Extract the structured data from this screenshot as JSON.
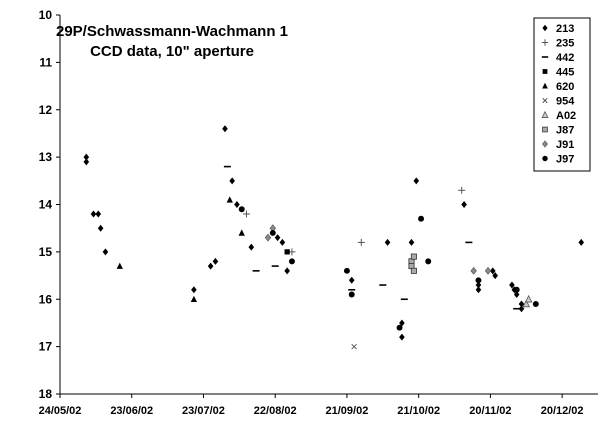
{
  "chart_data": {
    "type": "scatter",
    "title": "29P/Schwassmann-Wachmann 1",
    "subtitle": "CCD data, 10\" aperture",
    "xlabel": "",
    "ylabel": "",
    "xlim": [
      "2002-05-24",
      "2003-01-04"
    ],
    "ylim": [
      10,
      18
    ],
    "y_inverted": true,
    "x_ticks": [
      "24/05/02",
      "23/06/02",
      "23/07/02",
      "22/08/02",
      "21/09/02",
      "21/10/02",
      "20/11/02",
      "20/12/02"
    ],
    "y_ticks": [
      10,
      11,
      12,
      13,
      14,
      15,
      16,
      17,
      18
    ],
    "grid": false,
    "legend_position": "top-right",
    "series": [
      {
        "name": "213",
        "marker": "diamond",
        "color": "#000000",
        "points": [
          [
            "2002-06-04",
            13.0
          ],
          [
            "2002-06-04",
            13.1
          ],
          [
            "2002-06-07",
            14.2
          ],
          [
            "2002-06-09",
            14.2
          ],
          [
            "2002-06-10",
            14.5
          ],
          [
            "2002-06-12",
            15.0
          ],
          [
            "2002-07-26",
            15.3
          ],
          [
            "2002-07-28",
            15.2
          ],
          [
            "2002-07-19",
            15.8
          ],
          [
            "2002-08-01",
            12.4
          ],
          [
            "2002-08-04",
            13.5
          ],
          [
            "2002-08-06",
            14.0
          ],
          [
            "2002-08-12",
            14.9
          ],
          [
            "2002-08-23",
            14.7
          ],
          [
            "2002-08-25",
            14.8
          ],
          [
            "2002-08-27",
            15.4
          ],
          [
            "2002-09-23",
            15.6
          ],
          [
            "2002-10-08",
            14.8
          ],
          [
            "2002-10-14",
            16.5
          ],
          [
            "2002-10-14",
            16.8
          ],
          [
            "2002-10-18",
            14.8
          ],
          [
            "2002-10-20",
            13.5
          ],
          [
            "2002-11-09",
            14.0
          ],
          [
            "2002-11-15",
            15.7
          ],
          [
            "2002-11-15",
            15.8
          ],
          [
            "2002-11-21",
            15.4
          ],
          [
            "2002-11-22",
            15.5
          ],
          [
            "2002-11-29",
            15.7
          ],
          [
            "2002-11-30",
            15.8
          ],
          [
            "2002-12-01",
            15.9
          ],
          [
            "2002-12-03",
            16.1
          ],
          [
            "2002-12-03",
            16.2
          ],
          [
            "2002-12-28",
            14.8
          ]
        ]
      },
      {
        "name": "235",
        "marker": "plus",
        "color": "#555555",
        "points": [
          [
            "2002-08-10",
            14.2
          ],
          [
            "2002-08-29",
            15.0
          ],
          [
            "2002-09-27",
            14.8
          ],
          [
            "2002-11-08",
            13.7
          ]
        ]
      },
      {
        "name": "442",
        "marker": "dash",
        "color": "#000000",
        "points": [
          [
            "2002-08-02",
            13.2
          ],
          [
            "2002-08-14",
            15.4
          ],
          [
            "2002-08-22",
            15.3
          ],
          [
            "2002-09-23",
            15.8
          ],
          [
            "2002-10-06",
            15.7
          ],
          [
            "2002-10-15",
            16.0
          ],
          [
            "2002-11-11",
            14.8
          ],
          [
            "2002-12-01",
            16.2
          ]
        ]
      },
      {
        "name": "445",
        "marker": "square",
        "color": "#000000",
        "points": [
          [
            "2002-08-27",
            15.0
          ]
        ]
      },
      {
        "name": "620",
        "marker": "triangle",
        "color": "#000000",
        "points": [
          [
            "2002-06-18",
            15.3
          ],
          [
            "2002-07-19",
            16.0
          ],
          [
            "2002-08-03",
            13.9
          ],
          [
            "2002-08-08",
            14.6
          ]
        ]
      },
      {
        "name": "954",
        "marker": "x",
        "color": "#555555",
        "points": [
          [
            "2002-09-24",
            17.0
          ]
        ]
      },
      {
        "name": "A02",
        "marker": "triangle-open",
        "color": "#777777",
        "points": [
          [
            "2002-12-05",
            16.1
          ],
          [
            "2002-12-06",
            16.0
          ]
        ]
      },
      {
        "name": "J87",
        "marker": "square-grey",
        "color": "#777777",
        "points": [
          [
            "2002-10-18",
            15.2
          ],
          [
            "2002-10-18",
            15.3
          ],
          [
            "2002-10-19",
            15.4
          ],
          [
            "2002-10-19",
            15.1
          ]
        ]
      },
      {
        "name": "J91",
        "marker": "diamond-grey",
        "color": "#888888",
        "points": [
          [
            "2002-08-19",
            14.7
          ],
          [
            "2002-08-21",
            14.5
          ],
          [
            "2002-11-13",
            15.4
          ],
          [
            "2002-11-19",
            15.4
          ]
        ]
      },
      {
        "name": "J97",
        "marker": "circle",
        "color": "#000000",
        "points": [
          [
            "2002-08-08",
            14.1
          ],
          [
            "2002-08-21",
            14.6
          ],
          [
            "2002-08-29",
            15.2
          ],
          [
            "2002-09-21",
            15.4
          ],
          [
            "2002-09-23",
            15.9
          ],
          [
            "2002-10-13",
            16.6
          ],
          [
            "2002-10-22",
            14.3
          ],
          [
            "2002-10-25",
            15.2
          ],
          [
            "2002-11-15",
            15.6
          ],
          [
            "2002-12-01",
            15.8
          ],
          [
            "2002-12-09",
            16.1
          ]
        ]
      }
    ]
  }
}
